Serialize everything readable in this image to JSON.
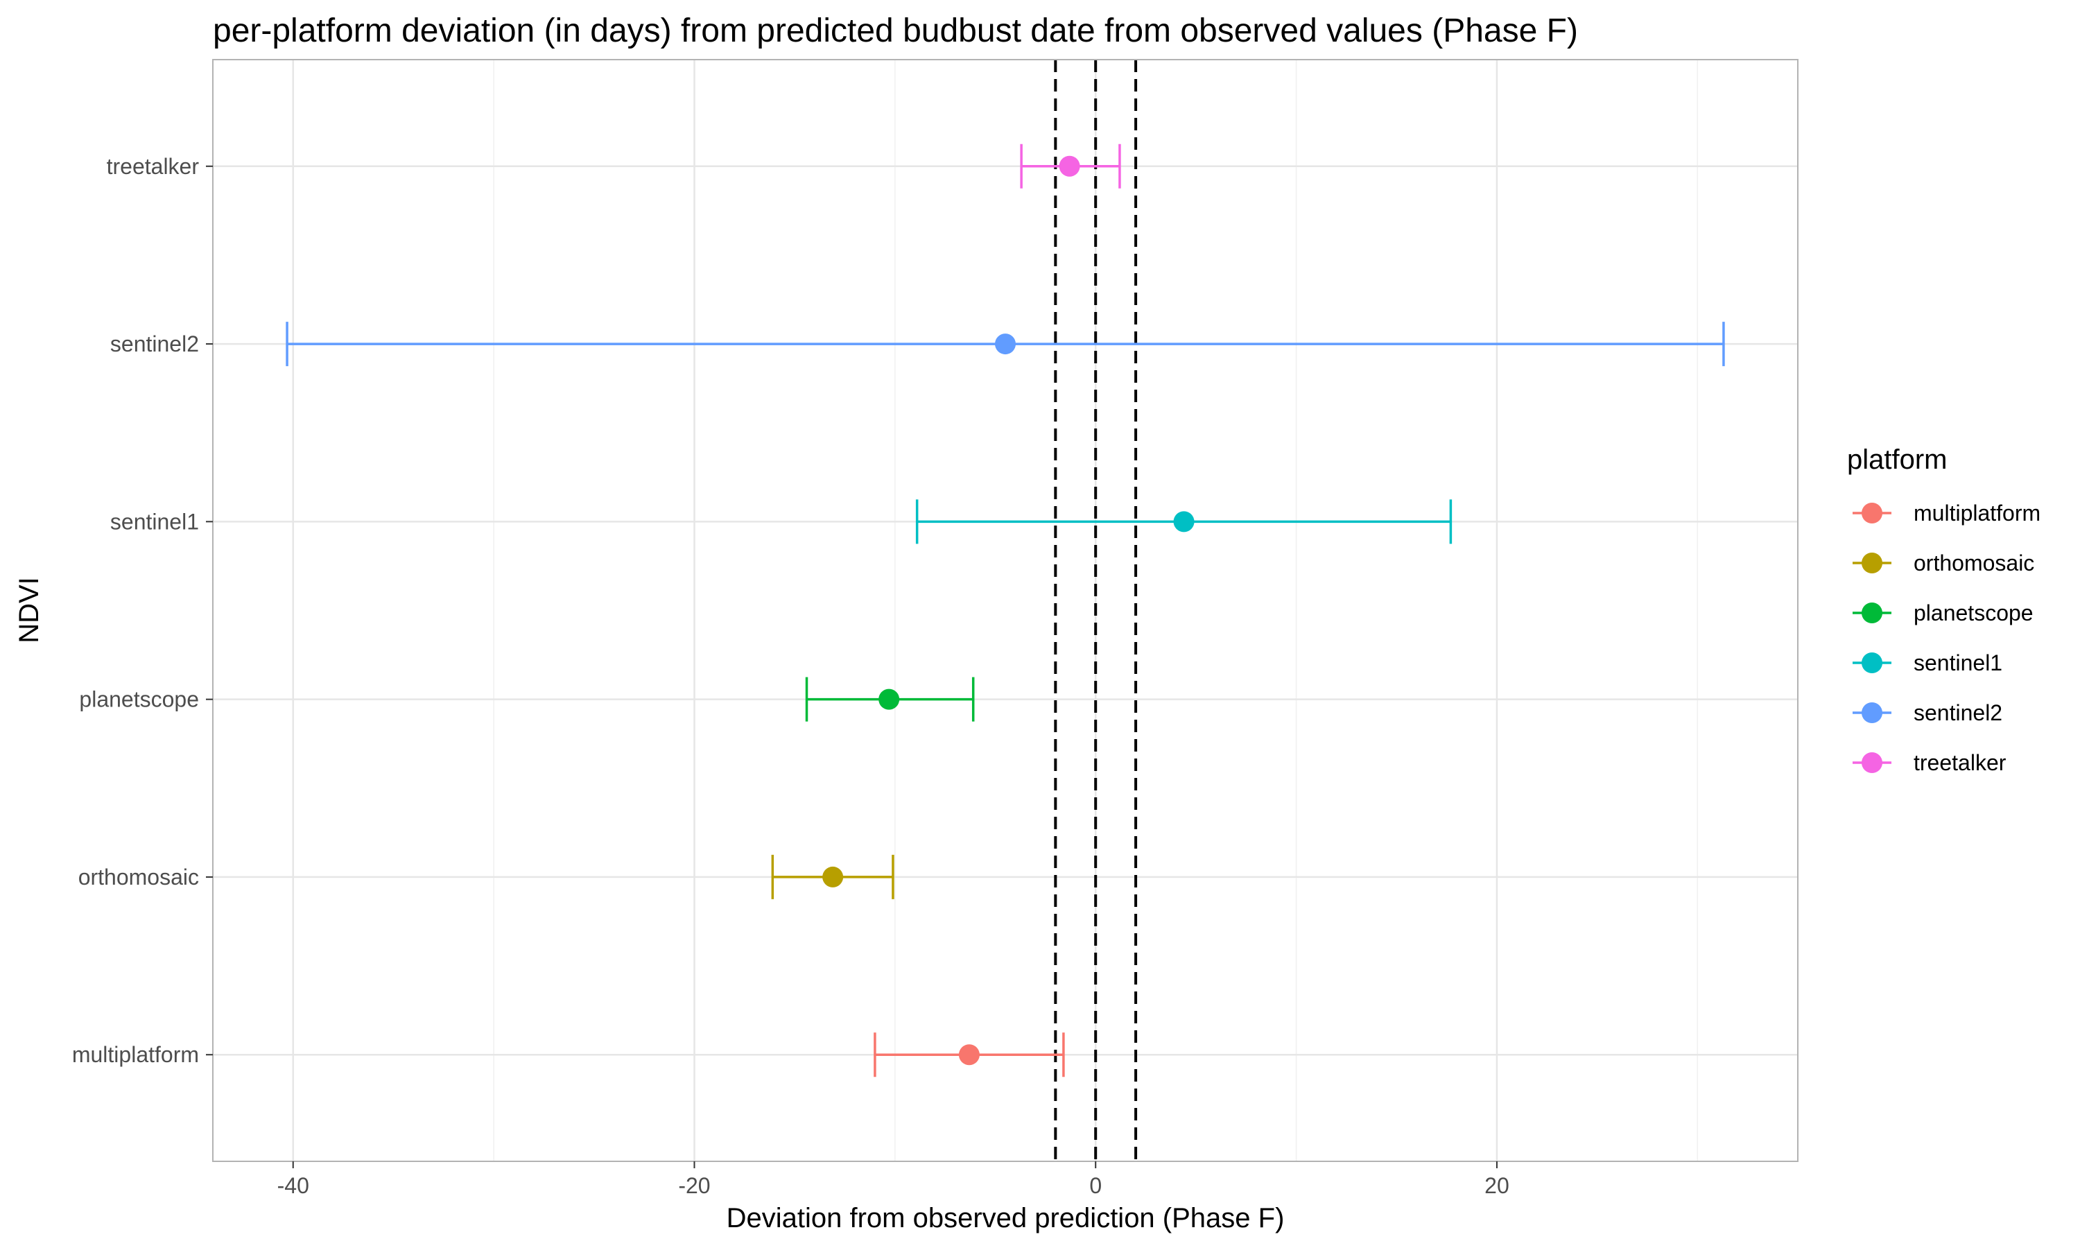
{
  "chart_data": {
    "type": "errorbar",
    "title": "per-platform deviation (in days) from predicted budbust date from observed values (Phase F)",
    "xlabel": "Deviation from observed prediction (Phase F)",
    "ylabel": "NDVI",
    "xlim": [
      -44,
      35
    ],
    "x_ticks": [
      -40,
      -20,
      0,
      20
    ],
    "x_tick_labels": [
      "-40",
      "-20",
      "0",
      "20"
    ],
    "categories": [
      "multiplatform",
      "orthomosaic",
      "planetscope",
      "sentinel1",
      "sentinel2",
      "treetalker"
    ],
    "series": [
      {
        "name": "multiplatform",
        "estimate": -6.3,
        "lower": -11.0,
        "upper": -1.6,
        "color": "#F8766D"
      },
      {
        "name": "orthomosaic",
        "estimate": -13.1,
        "lower": -16.1,
        "upper": -10.1,
        "color": "#B79F00"
      },
      {
        "name": "planetscope",
        "estimate": -10.3,
        "lower": -14.4,
        "upper": -6.1,
        "color": "#00BA38"
      },
      {
        "name": "sentinel1",
        "estimate": 4.4,
        "lower": -8.9,
        "upper": 17.7,
        "color": "#00BFC4"
      },
      {
        "name": "sentinel2",
        "estimate": -4.5,
        "lower": -40.3,
        "upper": 31.3,
        "color": "#619CFF"
      },
      {
        "name": "treetalker",
        "estimate": -1.3,
        "lower": -3.7,
        "upper": 1.2,
        "color": "#F564E3"
      }
    ],
    "reference_lines": [
      {
        "x": -2,
        "style": "dashed"
      },
      {
        "x": 0,
        "style": "dashed"
      },
      {
        "x": 2,
        "style": "dashed"
      }
    ],
    "grid": true,
    "legend": {
      "title": "platform",
      "position": "right"
    }
  }
}
